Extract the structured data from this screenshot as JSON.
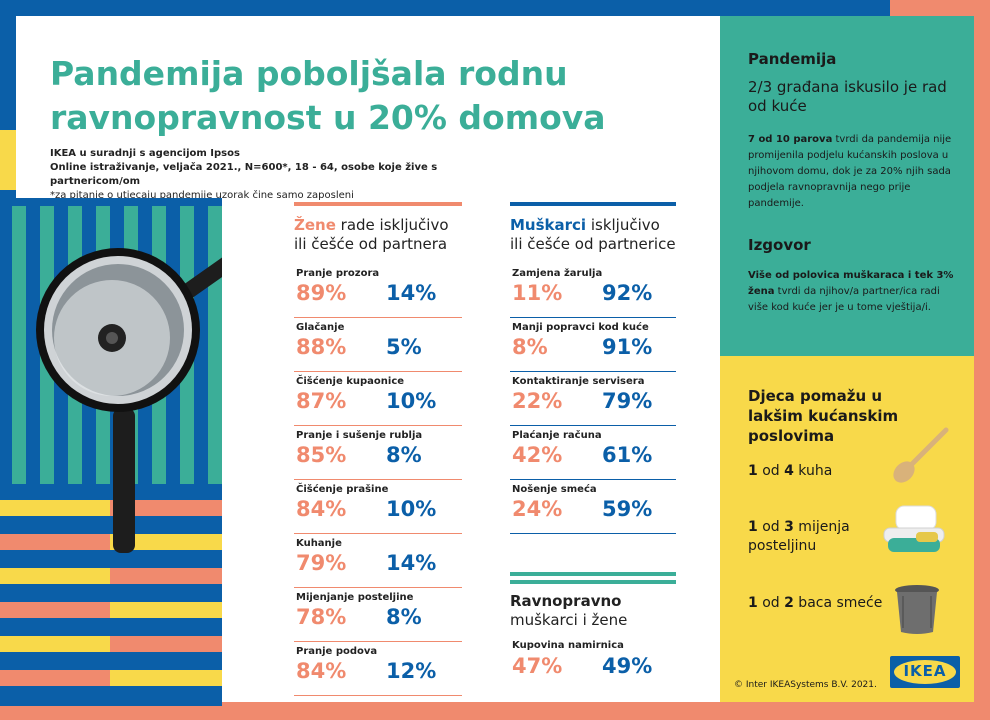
{
  "title": "Pandemija poboljšala rodnu ravnopravnost u 20% domova",
  "meta": {
    "line1": "IKEA u suradnji s agencijom Ipsos",
    "line2": "Online istraživanje, veljača 2021., N=600*, 18 - 64, osobe koje žive s partnericom/om",
    "line3": "*za pitanje o utjecaju pandemije uzorak čine samo zaposleni"
  },
  "colors": {
    "blue": "#0b5fa8",
    "orange": "#f08a6e",
    "teal": "#3bae98",
    "yellow": "#f8d94a"
  },
  "women": {
    "head_highlight": "Žene",
    "head_rest": " rade isključivo ili češće od partnera",
    "rows": [
      {
        "label": "Pranje prozora",
        "women": "89%",
        "men": "14%"
      },
      {
        "label": "Glačanje",
        "women": "88%",
        "men": "5%"
      },
      {
        "label": "Čišćenje kupaonice",
        "women": "87%",
        "men": "10%"
      },
      {
        "label": "Pranje i sušenje rublja",
        "women": "85%",
        "men": "8%"
      },
      {
        "label": "Čišćenje prašine",
        "women": "84%",
        "men": "10%"
      },
      {
        "label": "Kuhanje",
        "women": "79%",
        "men": "14%"
      },
      {
        "label": "Mijenjanje posteljine",
        "women": "78%",
        "men": "8%"
      },
      {
        "label": "Pranje podova",
        "women": "84%",
        "men": "12%"
      }
    ]
  },
  "men": {
    "head_highlight": "Muškarci",
    "head_rest": " isključivo ili češće od partnerice",
    "rows": [
      {
        "label": "Zamjena žarulja",
        "women": "11%",
        "men": "92%"
      },
      {
        "label": "Manji popravci kod kuće",
        "women": "8%",
        "men": "91%"
      },
      {
        "label": "Kontaktiranje servisera",
        "women": "22%",
        "men": "79%"
      },
      {
        "label": "Plaćanje računa",
        "women": "42%",
        "men": "61%"
      },
      {
        "label": "Nošenje smeća",
        "women": "24%",
        "men": "59%"
      }
    ]
  },
  "equal": {
    "head_bold": "Ravnopravno",
    "head_rest": "muškarci i žene",
    "row": {
      "label": "Kupovina namirnica",
      "women": "47%",
      "men": "49%"
    }
  },
  "pandemic": {
    "heading": "Pandemija",
    "subtitle": "2/3 građana iskusilo je rad od kuće",
    "text_bold": "7 od 10 parova",
    "text_rest": " tvrdi da pandemija nije promijenila podjelu kućanskih poslova u njihovom domu, dok je za 20% njih sada podjela ravnopravnija nego prije pandemije."
  },
  "excuse": {
    "heading": "Izgovor",
    "text_bold1": "Više od polovica muškaraca i tek 3% žena",
    "text_rest": " tvrdi da njihov/a partner/ica radi više kod kuće jer je u tome vještija/i."
  },
  "kids": {
    "heading": "Djeca pomažu u lakšim kućanskim poslovima",
    "items": [
      {
        "num1": "1",
        "mid": " od ",
        "num2": "4",
        "text": " kuha",
        "icon": "wooden-spoon-icon"
      },
      {
        "num1": "1",
        "mid": " od ",
        "num2": "3",
        "text": " mijenja posteljinu",
        "icon": "bedding-icon"
      },
      {
        "num1": "1",
        "mid": " od ",
        "num2": "2",
        "text": " baca smeće",
        "icon": "trash-bin-icon"
      }
    ],
    "copyright": "© Inter IKEASystems B.V. 2021.",
    "logo": "IKEA"
  }
}
